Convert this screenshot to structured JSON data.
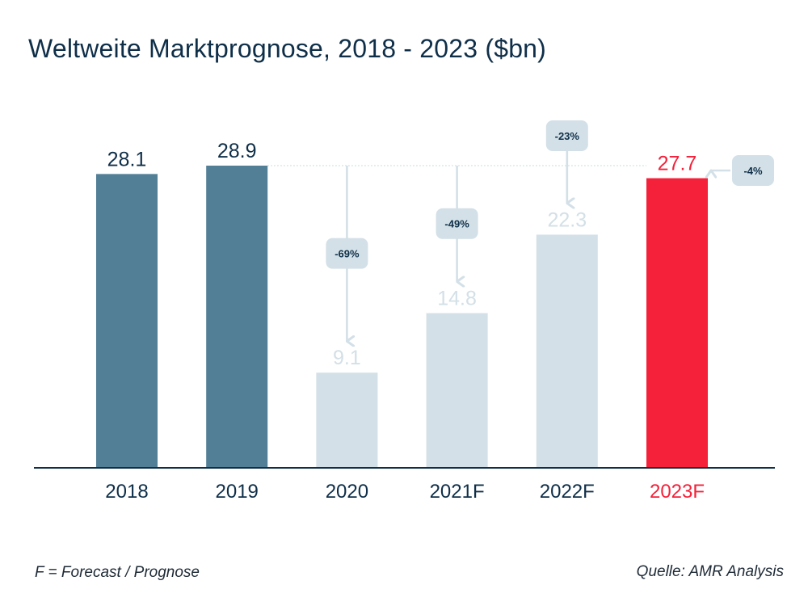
{
  "chart_data": {
    "type": "bar",
    "title": "Weltweite Marktprognose, 2018 - 2023 ($bn)",
    "categories": [
      "2018",
      "2019",
      "2020",
      "2021F",
      "2022F",
      "2023F"
    ],
    "values": [
      28.1,
      28.9,
      9.1,
      14.8,
      22.3,
      27.7
    ],
    "value_labels": [
      "28.1",
      "28.9",
      "9.1",
      "14.8",
      "22.3",
      "27.7"
    ],
    "bar_colors": [
      "#527f96",
      "#527f96",
      "#d3e0e7",
      "#d3e0e7",
      "#d3e0e7",
      "#f5213a"
    ],
    "label_colors": [
      "#0f2f49",
      "#0f2f49",
      "#d3e0e7",
      "#d3e0e7",
      "#d3e0e7",
      "#f5213a"
    ],
    "tick_colors": [
      "#0f2f49",
      "#0f2f49",
      "#0f2f49",
      "#0f2f49",
      "#0f2f49",
      "#f5213a"
    ],
    "reference_value": 28.9,
    "annotations": [
      {
        "category": "2020",
        "text": "-69%"
      },
      {
        "category": "2021F",
        "text": "-49%"
      },
      {
        "category": "2022F",
        "text": "-23%"
      },
      {
        "category": "2023F",
        "text": "-4%"
      }
    ],
    "ylim": [
      0,
      28.9
    ],
    "xlabel": "",
    "ylabel": "",
    "grid": false,
    "legend": "none"
  },
  "footer": {
    "note": "F = Forecast / Prognose",
    "source": "Quelle: AMR Analysis"
  },
  "colors": {
    "text": "#0f2f49",
    "axis": "#0f2f49",
    "badge": "#d3e0e7",
    "arrow": "#d3e0e7",
    "highlight": "#f5213a"
  }
}
